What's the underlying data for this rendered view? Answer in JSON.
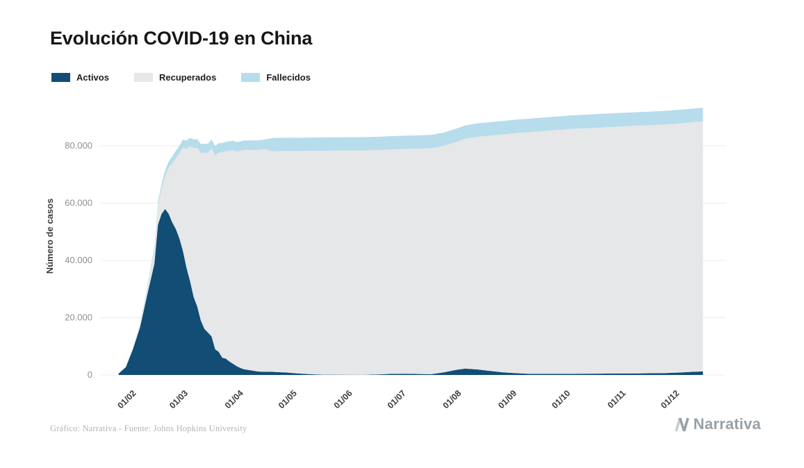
{
  "title": "Evolución COVID-19 en China",
  "ylabel": "Número de casos",
  "legend": [
    {
      "label": "Activos",
      "color": "#114d75"
    },
    {
      "label": "Recuperados",
      "color": "#e6e7e8"
    },
    {
      "label": "Fallecidos",
      "color": "#b7dcec"
    }
  ],
  "footer": {
    "source": "Gráfico: Narrativa - Fuente: Johns Hopkins University",
    "brand": "Narrativa"
  },
  "chart_data": {
    "type": "area",
    "stacked": true,
    "title": "Evolución COVID-19 en China",
    "xlabel": "",
    "ylabel": "Número de casos",
    "grid": true,
    "legend_position": "top-left",
    "ylim": [
      0,
      97000
    ],
    "x_domain_days": [
      12,
      362
    ],
    "yticks": {
      "values": [
        0,
        20000,
        40000,
        60000,
        80000
      ],
      "labels": [
        "0",
        "20.000",
        "40.000",
        "60.000",
        "80.000"
      ]
    },
    "xticks": {
      "labels": [
        "01/02",
        "01/03",
        "01/04",
        "01/05",
        "01/06",
        "01/07",
        "01/08",
        "01/09",
        "01/10",
        "01/11",
        "01/12"
      ],
      "days": [
        32,
        61,
        92,
        122,
        153,
        183,
        214,
        245,
        275,
        306,
        336
      ]
    },
    "x_dates": [
      "22/01",
      "26/01",
      "30/01",
      "03/02",
      "07/02",
      "11/02",
      "13/02",
      "15/02",
      "17/02",
      "19/02",
      "21/02",
      "23/02",
      "25/02",
      "27/02",
      "29/02",
      "02/03",
      "04/03",
      "06/03",
      "08/03",
      "10/03",
      "12/03",
      "14/03",
      "16/03",
      "18/03",
      "20/03",
      "22/03",
      "24/03",
      "26/03",
      "28/03",
      "30/03",
      "01/04",
      "05/04",
      "09/04",
      "13/04",
      "17/04",
      "21/04",
      "25/04",
      "01/05",
      "08/05",
      "15/05",
      "22/05",
      "01/06",
      "08/06",
      "15/06",
      "22/06",
      "01/07",
      "08/07",
      "15/07",
      "22/07",
      "29/07",
      "03/08",
      "10/08",
      "17/08",
      "24/08",
      "01/09",
      "08/09",
      "15/09",
      "22/09",
      "01/10",
      "08/10",
      "15/10",
      "22/10",
      "01/11",
      "08/11",
      "15/11",
      "22/11",
      "01/12",
      "07/12",
      "14/12"
    ],
    "series": [
      {
        "name": "Activos",
        "color": "#114d75",
        "values": [
          500,
          2700,
          9000,
          16700,
          28000,
          38800,
          52500,
          56200,
          58000,
          56300,
          53300,
          51000,
          47700,
          43300,
          37400,
          32700,
          27200,
          23900,
          19000,
          16100,
          14800,
          13500,
          9000,
          8100,
          6000,
          5700,
          4700,
          3900,
          3100,
          2500,
          2000,
          1600,
          1200,
          1100,
          1080,
          960,
          840,
          560,
          280,
          90,
          80,
          65,
          60,
          180,
          360,
          420,
          330,
          280,
          900,
          1800,
          2200,
          1900,
          1400,
          900,
          600,
          400,
          350,
          380,
          400,
          420,
          440,
          480,
          520,
          560,
          600,
          650,
          850,
          1050,
          1250
        ]
      },
      {
        "name": "Recuperados",
        "color": "#e6e7e8",
        "values": [
          28,
          60,
          170,
          630,
          2050,
          4740,
          6700,
          8900,
          11500,
          16155,
          20660,
          24735,
          29745,
          36117,
          41625,
          47204,
          52045,
          55404,
          58600,
          61475,
          62793,
          65541,
          67749,
          69601,
          71740,
          72440,
          73650,
          74588,
          74971,
          75770,
          76571,
          77000,
          77370,
          77810,
          77029,
          77207,
          77394,
          77642,
          77972,
          78227,
          78287,
          78330,
          78350,
          78370,
          78400,
          78530,
          78740,
          78930,
          79100,
          79600,
          80300,
          81300,
          82200,
          83100,
          83900,
          84400,
          84800,
          85100,
          85500,
          85700,
          85900,
          86100,
          86350,
          86500,
          86650,
          86800,
          87000,
          87150,
          87300
        ]
      },
      {
        "name": "Fallecidos",
        "color": "#b7dcec",
        "values": [
          17,
          80,
          213,
          426,
          724,
          1113,
          1369,
          1666,
          1868,
          2122,
          2345,
          2590,
          2663,
          2788,
          2870,
          2943,
          3012,
          3070,
          3100,
          3140,
          3169,
          3194,
          3213,
          3237,
          3248,
          3270,
          3277,
          3287,
          3295,
          3304,
          3312,
          3331,
          3339,
          3345,
          4632,
          4632,
          4633,
          4633,
          4633,
          4634,
          4634,
          4634,
          4634,
          4634,
          4634,
          4634,
          4634,
          4634,
          4640,
          4650,
          4660,
          4670,
          4690,
          4700,
          4710,
          4720,
          4725,
          4730,
          4735,
          4739,
          4742,
          4745,
          4748,
          4749,
          4750,
          4751,
          4752,
          4753,
          4755
        ]
      }
    ]
  }
}
